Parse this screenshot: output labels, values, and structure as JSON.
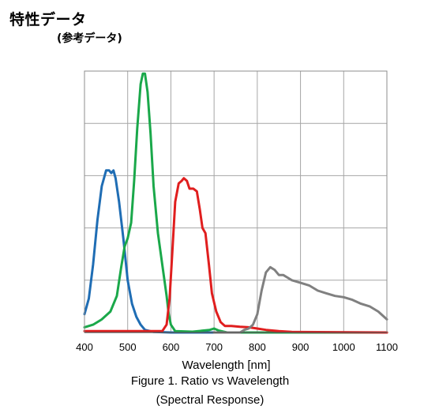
{
  "header": {
    "title": "特性データ",
    "subtitle": "(参考データ)"
  },
  "caption": {
    "line1": "Figure 1. Ratio vs Wavelength",
    "line2": "(Spectral Response)"
  },
  "chart_data": {
    "type": "line",
    "title": "",
    "xlabel": "Wavelength [nm]",
    "ylabel": "",
    "xlim": [
      400,
      1100
    ],
    "ylim": [
      0,
      1
    ],
    "xticks": [
      400,
      500,
      600,
      700,
      800,
      900,
      1000,
      1100
    ],
    "yticks_count": 5,
    "grid": true,
    "legend": "none",
    "series": [
      {
        "color": "#1f6db4",
        "points": [
          [
            400,
            0.07
          ],
          [
            410,
            0.13
          ],
          [
            420,
            0.26
          ],
          [
            430,
            0.43
          ],
          [
            440,
            0.56
          ],
          [
            450,
            0.62
          ],
          [
            457,
            0.62
          ],
          [
            462,
            0.61
          ],
          [
            467,
            0.62
          ],
          [
            472,
            0.59
          ],
          [
            480,
            0.5
          ],
          [
            490,
            0.36
          ],
          [
            500,
            0.2
          ],
          [
            510,
            0.11
          ],
          [
            520,
            0.06
          ],
          [
            530,
            0.03
          ],
          [
            540,
            0.01
          ],
          [
            560,
            0.002
          ],
          [
            600,
            0.0
          ],
          [
            1100,
            0.0
          ]
        ]
      },
      {
        "color": "#1aa84a",
        "points": [
          [
            400,
            0.02
          ],
          [
            420,
            0.03
          ],
          [
            440,
            0.05
          ],
          [
            460,
            0.08
          ],
          [
            475,
            0.14
          ],
          [
            485,
            0.25
          ],
          [
            493,
            0.33
          ],
          [
            500,
            0.36
          ],
          [
            508,
            0.42
          ],
          [
            515,
            0.58
          ],
          [
            522,
            0.78
          ],
          [
            530,
            0.95
          ],
          [
            535,
            0.99
          ],
          [
            540,
            0.99
          ],
          [
            546,
            0.92
          ],
          [
            553,
            0.76
          ],
          [
            560,
            0.56
          ],
          [
            570,
            0.38
          ],
          [
            580,
            0.26
          ],
          [
            590,
            0.14
          ],
          [
            595,
            0.07
          ],
          [
            600,
            0.03
          ],
          [
            610,
            0.005
          ],
          [
            650,
            0.003
          ],
          [
            690,
            0.01
          ],
          [
            700,
            0.015
          ],
          [
            710,
            0.008
          ],
          [
            730,
            0.0
          ],
          [
            1100,
            0.0
          ]
        ]
      },
      {
        "color": "#e01e1e",
        "points": [
          [
            400,
            0.005
          ],
          [
            580,
            0.005
          ],
          [
            590,
            0.03
          ],
          [
            597,
            0.13
          ],
          [
            603,
            0.3
          ],
          [
            610,
            0.5
          ],
          [
            618,
            0.57
          ],
          [
            625,
            0.58
          ],
          [
            630,
            0.59
          ],
          [
            637,
            0.58
          ],
          [
            643,
            0.55
          ],
          [
            652,
            0.55
          ],
          [
            660,
            0.54
          ],
          [
            667,
            0.47
          ],
          [
            673,
            0.4
          ],
          [
            680,
            0.38
          ],
          [
            688,
            0.26
          ],
          [
            695,
            0.15
          ],
          [
            705,
            0.08
          ],
          [
            715,
            0.04
          ],
          [
            725,
            0.025
          ],
          [
            740,
            0.025
          ],
          [
            760,
            0.022
          ],
          [
            780,
            0.02
          ],
          [
            800,
            0.015
          ],
          [
            820,
            0.01
          ],
          [
            850,
            0.005
          ],
          [
            880,
            0.002
          ],
          [
            1100,
            0.0
          ]
        ]
      },
      {
        "color": "#808080",
        "points": [
          [
            700,
            0.0
          ],
          [
            760,
            0.0
          ],
          [
            770,
            0.01
          ],
          [
            780,
            0.015
          ],
          [
            790,
            0.03
          ],
          [
            800,
            0.07
          ],
          [
            810,
            0.16
          ],
          [
            820,
            0.23
          ],
          [
            830,
            0.25
          ],
          [
            840,
            0.24
          ],
          [
            850,
            0.22
          ],
          [
            860,
            0.22
          ],
          [
            870,
            0.21
          ],
          [
            880,
            0.2
          ],
          [
            900,
            0.19
          ],
          [
            920,
            0.18
          ],
          [
            940,
            0.16
          ],
          [
            960,
            0.15
          ],
          [
            980,
            0.14
          ],
          [
            1000,
            0.135
          ],
          [
            1020,
            0.125
          ],
          [
            1040,
            0.11
          ],
          [
            1060,
            0.1
          ],
          [
            1080,
            0.08
          ],
          [
            1100,
            0.05
          ]
        ]
      }
    ]
  }
}
